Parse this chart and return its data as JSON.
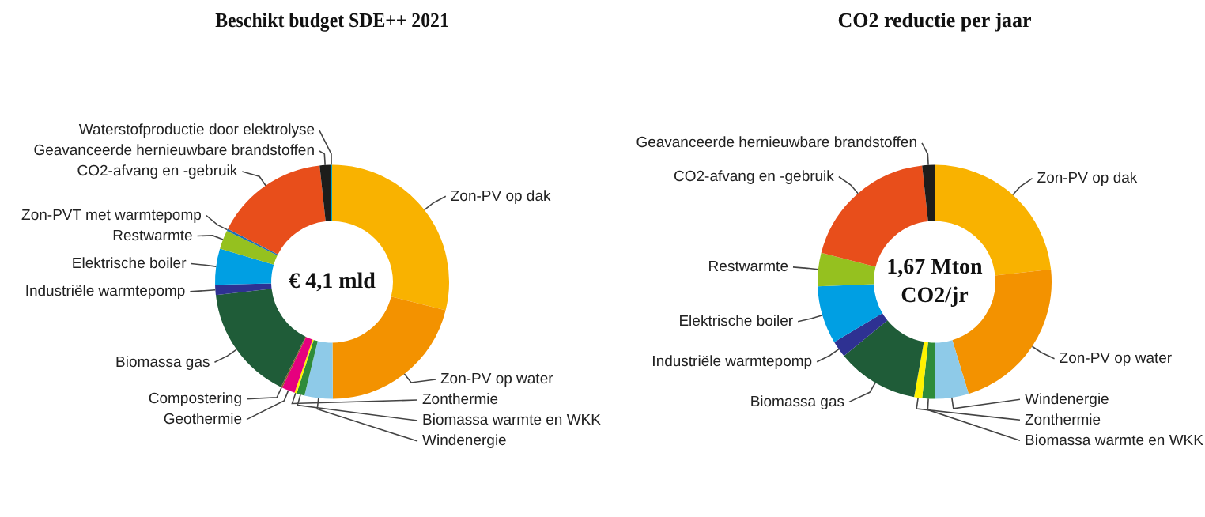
{
  "chart_data": [
    {
      "type": "donut",
      "title": "Beschikt budget SDE++ 2021",
      "categories": [
        "Zon-PV op dak",
        "Zon-PV op water",
        "Windenergie",
        "Biomassa warmte en WKK",
        "Zonthermie",
        "Geothermie",
        "Compostering",
        "Biomassa gas",
        "Industriële warmtepomp",
        "Elektrische boiler",
        "Restwarmte",
        "Zon-PVT met warmtepomp",
        "CO2-afvang en -gebruik",
        "Geavanceerde hernieuwbare brandstoffen",
        "Waterstofproductie door elektrolyse"
      ],
      "values": [
        28.9,
        21,
        3.9,
        1.1,
        0.3,
        1.8,
        0.2,
        16,
        1.4,
        5,
        2.6,
        0.3,
        15.8,
        1.5,
        0.2
      ],
      "colors": [
        "#f9b200",
        "#f39200",
        "#8ecae8",
        "#2e8b3a",
        "#fff200",
        "#e6007e",
        "#8b5a2b",
        "#1f5c38",
        "#2e3192",
        "#009fe3",
        "#95c11f",
        "#1d70b7",
        "#e84e1b",
        "#1d1d1b",
        "#00a0c6"
      ],
      "annotations": [
        "€ 4,1 mld"
      ]
    },
    {
      "type": "donut",
      "title": "CO2 reductie per jaar",
      "categories": [
        "Zon-PV op dak",
        "Zon-PV op water",
        "Windenergie",
        "Biomassa warmte en WKK",
        "Zonthermie",
        "Biomassa gas",
        "Industriële warmtepomp",
        "Elektrische boiler",
        "Restwarmte",
        "CO2-afvang en -gebruik",
        "Geavanceerde hernieuwbare brandstoffen"
      ],
      "values": [
        23.3,
        22,
        4.7,
        1.7,
        1.1,
        11.3,
        2.3,
        8,
        4.6,
        19.3,
        1.7
      ],
      "colors": [
        "#f9b200",
        "#f39200",
        "#8ecae8",
        "#2e8b3a",
        "#fff200",
        "#1f5c38",
        "#2e3192",
        "#009fe3",
        "#95c11f",
        "#e84e1b",
        "#1d1d1b"
      ],
      "annotations": [
        "1,67 Mton",
        "CO2/jr"
      ]
    }
  ]
}
